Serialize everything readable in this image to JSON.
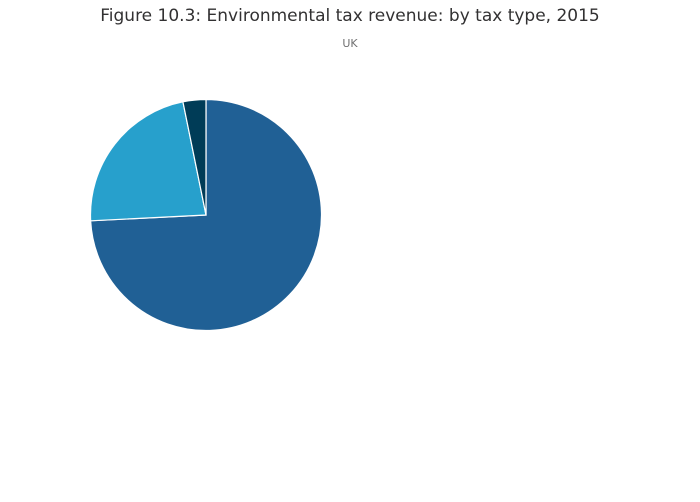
{
  "chart_data": {
    "type": "pie",
    "title": "Figure 10.3: Environmental tax revenue: by tax type, 2015",
    "subtitle": "UK",
    "slices": [
      {
        "value": 74.2,
        "color": "#206095"
      },
      {
        "value": 22.6,
        "color": "#27a0cc"
      },
      {
        "value": 3.2,
        "color": "#003c57"
      }
    ],
    "direction": "clockwise",
    "start_angle": "12 o'clock",
    "legend": "none"
  }
}
